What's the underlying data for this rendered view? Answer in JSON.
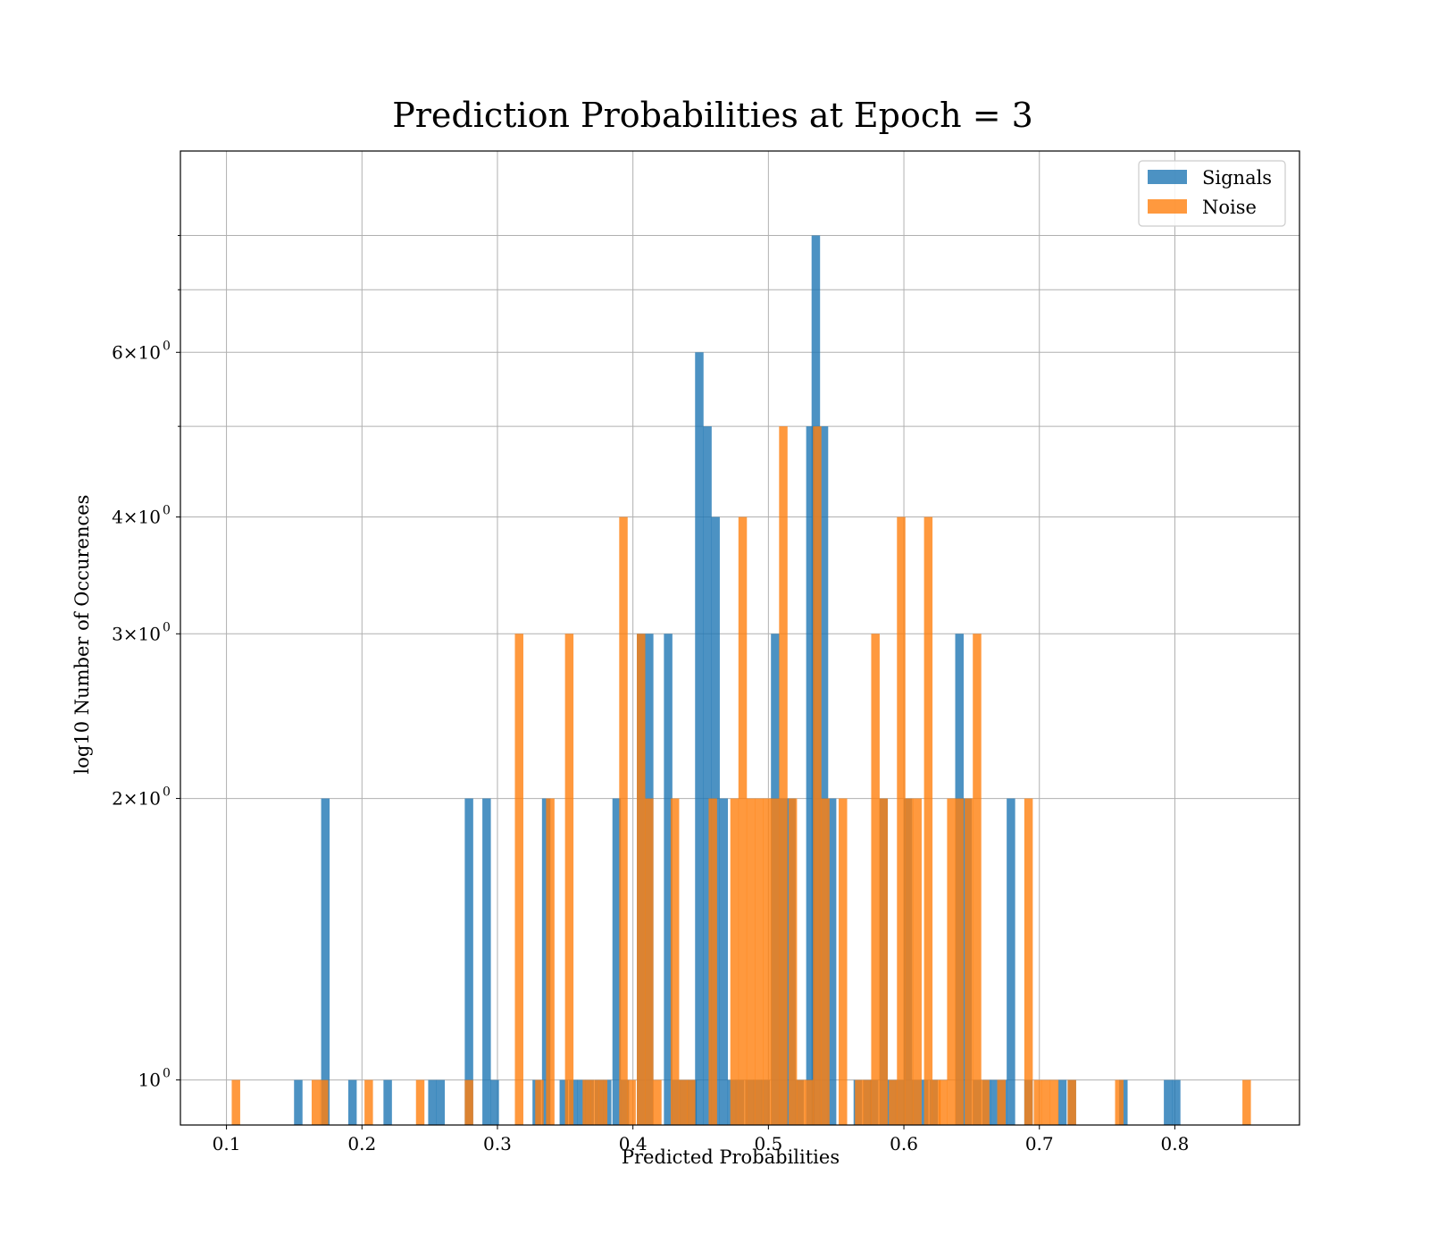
{
  "chart_data": {
    "type": "bar",
    "title": "Prediction Probabilities at Epoch = 3",
    "xlabel": "Predicted Probabilities",
    "ylabel": "log10 Number of Occurences",
    "xlim": [
      0.066,
      0.892
    ],
    "ylim": [
      0.895,
      9.85
    ],
    "yscale": "log",
    "grid": true,
    "legend_position": "top-right",
    "bin_width": 0.00625,
    "x_ticks": [
      {
        "value": 0.1,
        "label": "0.1"
      },
      {
        "value": 0.2,
        "label": "0.2"
      },
      {
        "value": 0.3,
        "label": "0.3"
      },
      {
        "value": 0.4,
        "label": "0.4"
      },
      {
        "value": 0.5,
        "label": "0.5"
      },
      {
        "value": 0.6,
        "label": "0.6"
      },
      {
        "value": 0.7,
        "label": "0.7"
      },
      {
        "value": 0.8,
        "label": "0.8"
      }
    ],
    "y_ticks_major": [
      {
        "value": 1,
        "base": "10",
        "exp": "0"
      },
      {
        "value": 2,
        "base": "2×10",
        "exp": "0"
      },
      {
        "value": 3,
        "base": "3×10",
        "exp": "0"
      },
      {
        "value": 4,
        "base": "4×10",
        "exp": "0"
      },
      {
        "value": 6,
        "base": "6×10",
        "exp": "0"
      }
    ],
    "y_ticks_minor": [
      5,
      7,
      8
    ],
    "series": [
      {
        "name": "Signals",
        "color": "#1f77b4",
        "bins": [
          [
            0.153,
            1
          ],
          [
            0.173,
            2
          ],
          [
            0.193,
            1
          ],
          [
            0.219,
            1
          ],
          [
            0.252,
            1
          ],
          [
            0.258,
            1
          ],
          [
            0.279,
            2
          ],
          [
            0.292,
            2
          ],
          [
            0.298,
            1
          ],
          [
            0.329,
            1
          ],
          [
            0.336,
            2
          ],
          [
            0.349,
            1
          ],
          [
            0.356,
            1
          ],
          [
            0.362,
            1
          ],
          [
            0.368,
            1
          ],
          [
            0.375,
            1
          ],
          [
            0.381,
            1
          ],
          [
            0.388,
            2
          ],
          [
            0.394,
            1
          ],
          [
            0.406,
            3
          ],
          [
            0.412,
            3
          ],
          [
            0.426,
            3
          ],
          [
            0.432,
            1
          ],
          [
            0.438,
            1
          ],
          [
            0.444,
            1
          ],
          [
            0.449,
            6
          ],
          [
            0.455,
            5
          ],
          [
            0.461,
            4
          ],
          [
            0.467,
            2
          ],
          [
            0.473,
            1
          ],
          [
            0.479,
            1
          ],
          [
            0.486,
            1
          ],
          [
            0.492,
            1
          ],
          [
            0.498,
            1
          ],
          [
            0.505,
            3
          ],
          [
            0.511,
            2
          ],
          [
            0.517,
            2
          ],
          [
            0.523,
            1
          ],
          [
            0.531,
            5
          ],
          [
            0.535,
            8
          ],
          [
            0.541,
            5
          ],
          [
            0.547,
            2
          ],
          [
            0.566,
            1
          ],
          [
            0.573,
            1
          ],
          [
            0.578,
            1
          ],
          [
            0.585,
            2
          ],
          [
            0.591,
            1
          ],
          [
            0.597,
            1
          ],
          [
            0.603,
            2
          ],
          [
            0.609,
            1
          ],
          [
            0.615,
            1
          ],
          [
            0.622,
            1
          ],
          [
            0.641,
            3
          ],
          [
            0.647,
            2
          ],
          [
            0.654,
            1
          ],
          [
            0.661,
            1
          ],
          [
            0.667,
            1
          ],
          [
            0.673,
            1
          ],
          [
            0.679,
            2
          ],
          [
            0.692,
            1
          ],
          [
            0.717,
            1
          ],
          [
            0.724,
            1
          ],
          [
            0.762,
            1
          ],
          [
            0.795,
            1
          ],
          [
            0.801,
            1
          ]
        ]
      },
      {
        "name": "Noise",
        "color": "#ff7f0e",
        "bins": [
          [
            0.107,
            1
          ],
          [
            0.166,
            1
          ],
          [
            0.172,
            1
          ],
          [
            0.205,
            1
          ],
          [
            0.243,
            1
          ],
          [
            0.279,
            1
          ],
          [
            0.316,
            3
          ],
          [
            0.331,
            1
          ],
          [
            0.339,
            2
          ],
          [
            0.353,
            3
          ],
          [
            0.366,
            1
          ],
          [
            0.372,
            1
          ],
          [
            0.378,
            1
          ],
          [
            0.393,
            4
          ],
          [
            0.399,
            1
          ],
          [
            0.406,
            3
          ],
          [
            0.412,
            2
          ],
          [
            0.418,
            1
          ],
          [
            0.431,
            2
          ],
          [
            0.437,
            1
          ],
          [
            0.443,
            1
          ],
          [
            0.459,
            2
          ],
          [
            0.475,
            2
          ],
          [
            0.481,
            4
          ],
          [
            0.487,
            2
          ],
          [
            0.493,
            2
          ],
          [
            0.499,
            2
          ],
          [
            0.505,
            2
          ],
          [
            0.511,
            5
          ],
          [
            0.518,
            2
          ],
          [
            0.524,
            1
          ],
          [
            0.53,
            1
          ],
          [
            0.536,
            5
          ],
          [
            0.542,
            2
          ],
          [
            0.555,
            2
          ],
          [
            0.567,
            1
          ],
          [
            0.573,
            1
          ],
          [
            0.579,
            3
          ],
          [
            0.585,
            2
          ],
          [
            0.592,
            1
          ],
          [
            0.598,
            4
          ],
          [
            0.604,
            2
          ],
          [
            0.61,
            2
          ],
          [
            0.618,
            4
          ],
          [
            0.624,
            1
          ],
          [
            0.629,
            1
          ],
          [
            0.635,
            2
          ],
          [
            0.641,
            2
          ],
          [
            0.648,
            2
          ],
          [
            0.654,
            3
          ],
          [
            0.66,
            1
          ],
          [
            0.672,
            1
          ],
          [
            0.692,
            2
          ],
          [
            0.699,
            1
          ],
          [
            0.705,
            1
          ],
          [
            0.711,
            1
          ],
          [
            0.724,
            1
          ],
          [
            0.759,
            1
          ],
          [
            0.853,
            1
          ]
        ]
      }
    ]
  }
}
